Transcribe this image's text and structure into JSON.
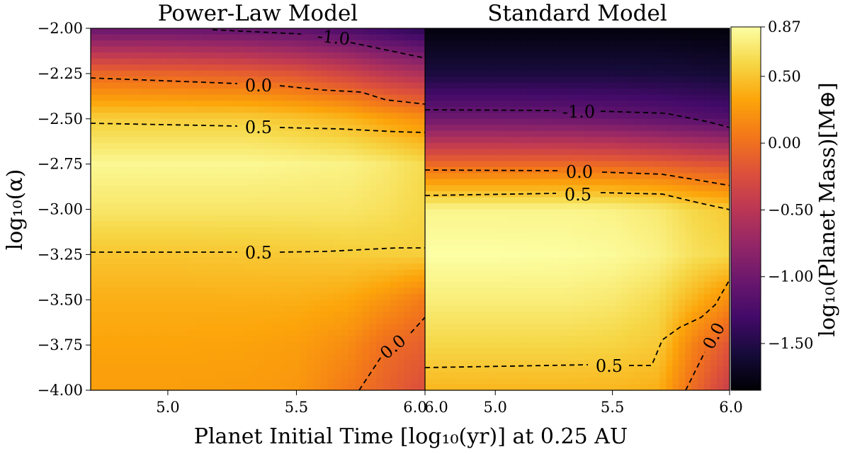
{
  "chart_data": {
    "type": "heatmap",
    "figure": {
      "xlabel": "Planet Initial Time [log₁₀(yr)] at 0.25 AU",
      "ylabel": "log₁₀(α)",
      "colorbar_label": "log₁₀(Planet Mass)[M⊕]",
      "colormap": "inferno",
      "colorbar_range": [
        -1.85,
        0.87
      ],
      "colorbar_ticks": [
        0.87,
        0.5,
        0.0,
        -0.5,
        -1.0,
        -1.5
      ],
      "colorbar_tick_labels": [
        "0.87",
        "0.50",
        "0.00",
        "−0.50",
        "−1.00",
        "−1.50"
      ],
      "ylim": [
        -4.0,
        -2.0
      ],
      "yticks": [
        -2.0,
        -2.25,
        -2.5,
        -2.75,
        -3.0,
        -3.25,
        -3.5,
        -3.75,
        -4.0
      ],
      "ytick_labels": [
        "−2.00",
        "−2.25",
        "−2.50",
        "−2.75",
        "−3.00",
        "−3.25",
        "−3.50",
        "−3.75",
        "−4.00"
      ],
      "xlim": [
        4.7,
        6.0
      ],
      "xticks": [
        5.0,
        5.5,
        6.0
      ],
      "xtick_labels": [
        "5.0",
        "5.5",
        "6.0"
      ],
      "x": [
        4.7,
        5.0,
        5.3,
        5.5,
        5.7,
        5.85,
        6.0
      ],
      "y": [
        -2.0,
        -2.25,
        -2.5,
        -2.75,
        -3.0,
        -3.25,
        -3.5,
        -3.75,
        -4.0
      ]
    },
    "panels": [
      {
        "title": "Power-Law Model",
        "z": [
          [
            -1.05,
            -1.05,
            -1.1,
            -1.15,
            -1.25,
            -1.35,
            -1.45
          ],
          [
            -0.05,
            -0.08,
            -0.12,
            -0.2,
            -0.35,
            -0.5,
            -0.6
          ],
          [
            0.55,
            0.55,
            0.55,
            0.5,
            0.42,
            0.3,
            0.2
          ],
          [
            0.82,
            0.82,
            0.82,
            0.8,
            0.78,
            0.72,
            0.62
          ],
          [
            0.7,
            0.7,
            0.7,
            0.7,
            0.7,
            0.66,
            0.6
          ],
          [
            0.5,
            0.5,
            0.51,
            0.52,
            0.54,
            0.55,
            0.55
          ],
          [
            0.38,
            0.38,
            0.38,
            0.38,
            0.34,
            0.22,
            0.06
          ],
          [
            0.32,
            0.32,
            0.31,
            0.28,
            0.18,
            -0.02,
            -0.12
          ],
          [
            0.28,
            0.28,
            0.27,
            0.24,
            0.06,
            -0.1,
            -0.25
          ]
        ],
        "contours": [
          {
            "label": "-1.0",
            "values": "-1.0"
          },
          {
            "label": "0.0",
            "values": "0.0"
          },
          {
            "label": "0.5",
            "values": "0.5"
          },
          {
            "label": "0.5",
            "values": "0.5"
          },
          {
            "label": "0.0",
            "values": "0.0"
          }
        ]
      },
      {
        "title": "Standard Model",
        "z": [
          [
            -1.8,
            -1.8,
            -1.8,
            -1.8,
            -1.8,
            -1.82,
            -1.82
          ],
          [
            -1.55,
            -1.55,
            -1.55,
            -1.55,
            -1.56,
            -1.58,
            -1.6
          ],
          [
            -1.0,
            -1.0,
            -1.02,
            -1.05,
            -1.1,
            -1.15,
            -1.2
          ],
          [
            -0.05,
            -0.05,
            -0.05,
            -0.07,
            -0.12,
            -0.18,
            -0.22
          ],
          [
            0.8,
            0.8,
            0.8,
            0.78,
            0.72,
            0.6,
            0.52
          ],
          [
            0.87,
            0.87,
            0.86,
            0.84,
            0.78,
            0.66,
            0.6
          ],
          [
            0.75,
            0.75,
            0.75,
            0.72,
            0.62,
            0.4,
            0.18
          ],
          [
            0.6,
            0.6,
            0.6,
            0.58,
            0.52,
            0.1,
            -0.2
          ],
          [
            0.42,
            0.42,
            0.42,
            0.42,
            0.38,
            -0.05,
            -0.4
          ]
        ],
        "contours": [
          {
            "label": "-1.0",
            "values": "-1.0"
          },
          {
            "label": "0.0",
            "values": "0.0"
          },
          {
            "label": "0.5",
            "values": "0.5"
          },
          {
            "label": "0.5",
            "values": "0.5"
          },
          {
            "label": "0.0",
            "values": "0.0"
          }
        ]
      }
    ]
  }
}
